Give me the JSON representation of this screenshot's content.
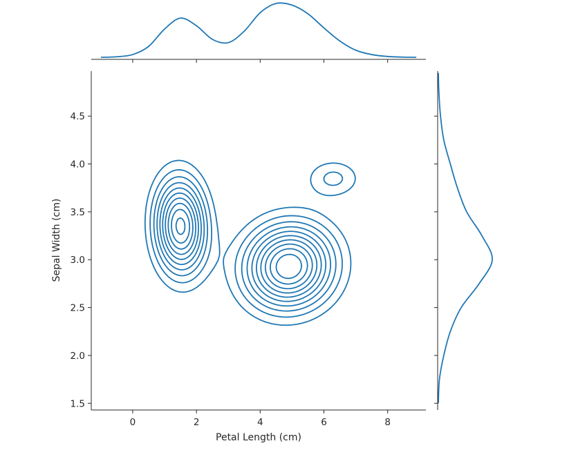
{
  "chart_data": {
    "type": "kde-jointplot",
    "xlabel": "Petal Length (cm)",
    "ylabel": "Sepal Width (cm)",
    "xlim": [
      -1.3,
      9.2
    ],
    "ylim": [
      1.43,
      4.97
    ],
    "xticks": [
      0,
      2,
      4,
      6,
      8
    ],
    "xtick_labels": [
      "0",
      "2",
      "4",
      "6",
      "8"
    ],
    "yticks": [
      1.5,
      2.0,
      2.5,
      3.0,
      3.5,
      4.0,
      4.5
    ],
    "ytick_labels": [
      "1.5",
      "2.0",
      "2.5",
      "3.0",
      "3.5",
      "4.0",
      "4.5"
    ],
    "grid": false,
    "color": "#1f77b4",
    "density_modes": [
      {
        "petal_length": 1.5,
        "sepal_width": 3.35,
        "weight": 0.36,
        "sx": 0.55,
        "sy": 0.34,
        "rho": -0.05
      },
      {
        "petal_length": 4.9,
        "sepal_width": 2.93,
        "weight": 0.58,
        "sx": 0.95,
        "sy": 0.3,
        "rho": 0.05
      },
      {
        "petal_length": 6.3,
        "sepal_width": 3.85,
        "weight": 0.04,
        "sx": 0.6,
        "sy": 0.14,
        "rho": 0.0
      }
    ],
    "contour_levels": 10,
    "marginal_x": {
      "type": "kde",
      "x": [
        -1.0,
        -0.5,
        0.0,
        0.5,
        1.0,
        1.5,
        2.0,
        2.5,
        3.0,
        3.5,
        4.0,
        4.5,
        5.0,
        5.5,
        6.0,
        6.5,
        7.0,
        7.5,
        8.0,
        8.5,
        8.9
      ],
      "density": [
        0.0,
        0.01,
        0.05,
        0.2,
        0.52,
        0.72,
        0.58,
        0.33,
        0.27,
        0.48,
        0.82,
        0.99,
        0.96,
        0.8,
        0.54,
        0.3,
        0.13,
        0.05,
        0.015,
        0.003,
        0.0
      ]
    },
    "marginal_y": {
      "type": "kde",
      "y": [
        1.5,
        1.75,
        2.0,
        2.25,
        2.5,
        2.75,
        3.0,
        3.25,
        3.5,
        3.75,
        4.0,
        4.25,
        4.5,
        4.75,
        4.95
      ],
      "density": [
        0.0,
        0.02,
        0.1,
        0.22,
        0.42,
        0.75,
        0.99,
        0.8,
        0.52,
        0.35,
        0.22,
        0.1,
        0.04,
        0.01,
        0.0
      ]
    }
  }
}
